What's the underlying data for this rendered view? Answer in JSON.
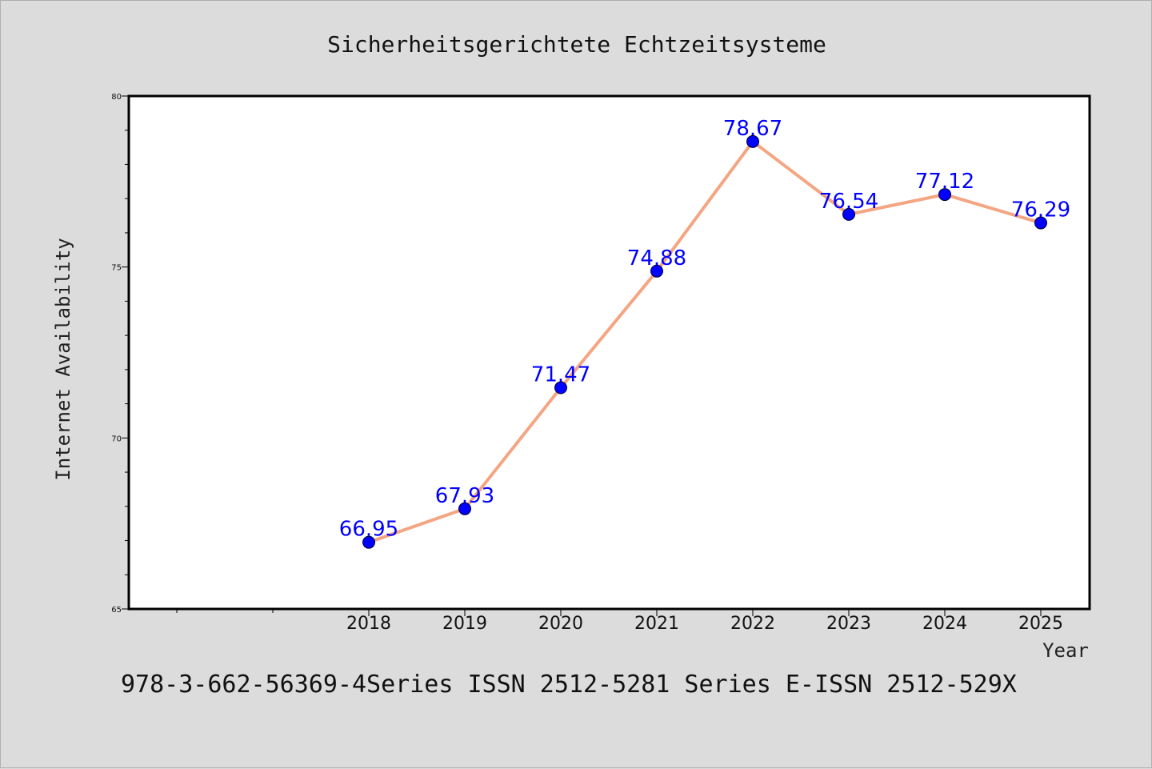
{
  "chart_data": {
    "type": "line",
    "title": "Sicherheitsgerichtete Echtzeitsysteme",
    "xlabel": "Year",
    "ylabel": "Internet Availability",
    "categories": [
      "2018",
      "2019",
      "2020",
      "2021",
      "2022",
      "2023",
      "2024",
      "2025"
    ],
    "series": [
      {
        "values": [
          66.95,
          67.93,
          71.47,
          74.88,
          78.67,
          76.54,
          77.12,
          76.29
        ],
        "data_labels": [
          "66.95",
          "67.93",
          "71.47",
          "74.88",
          "78.67",
          "76.54",
          "77.12",
          "76.29"
        ]
      }
    ],
    "ylim": [
      65,
      80
    ],
    "yticks": [
      "65",
      "70",
      "75",
      "80"
    ],
    "grid": false,
    "legend": "none",
    "colors": {
      "line": "#f4a582",
      "marker": "#0000ff",
      "data_label": "#0000ff",
      "background": "#dcdcdc",
      "plot_area": "#ffffff"
    }
  },
  "footer": {
    "text": "978-3-662-56369-4Series ISSN 2512-5281 Series E-ISSN 2512-529X"
  }
}
